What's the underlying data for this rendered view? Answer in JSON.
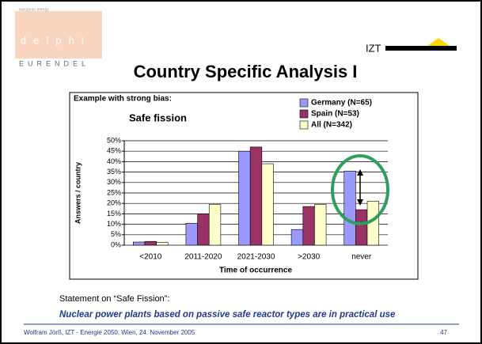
{
  "slide": {
    "logo_top": "european energy",
    "logo_word": "delphi",
    "logo_bottom": "EURENDEL",
    "brand": "IZT",
    "title": "Country Specific Analysis I",
    "statement": "Statement on “Safe Fission”:",
    "claim": "Nuclear power plants based on passive safe reactor types are in practical use",
    "footer": "Wolfram Jörß, IZT - Energie 2050, Wien, 24. November 2005",
    "page": "47"
  },
  "chart_data": {
    "type": "bar",
    "subtitle": "Example with strong bias:",
    "title": "Safe fission",
    "x_label": "Time of occurrence",
    "y_label": "Answers / country",
    "categories": [
      "<2010",
      "2011-2020",
      "2021-2030",
      ">2030",
      "never"
    ],
    "series": [
      {
        "name": "Germany (N=65)",
        "color": "#9999ff",
        "values": [
          1.5,
          10.5,
          45,
          7.5,
          35.5
        ]
      },
      {
        "name": "Spain (N=53)",
        "color": "#993366",
        "values": [
          1.8,
          15,
          47,
          18.5,
          17
        ]
      },
      {
        "name": "All (N=342)",
        "color": "#ffffcc",
        "values": [
          1.3,
          19.5,
          39,
          19.5,
          21
        ]
      }
    ],
    "ylim": [
      0,
      50
    ],
    "yticks": [
      {
        "value": 0,
        "label": "0%"
      },
      {
        "value": 5,
        "label": "5%"
      },
      {
        "value": 10,
        "label": "10%"
      },
      {
        "value": 15,
        "label": "15%"
      },
      {
        "value": 20,
        "label": "20%"
      },
      {
        "value": 25,
        "label": "25%"
      },
      {
        "value": 30,
        "label": "30%"
      },
      {
        "value": 35,
        "label": "35%"
      },
      {
        "value": 40,
        "label": "40%"
      },
      {
        "value": 45,
        "label": "45%"
      },
      {
        "value": 50,
        "label": "50%"
      }
    ],
    "grid": true
  }
}
